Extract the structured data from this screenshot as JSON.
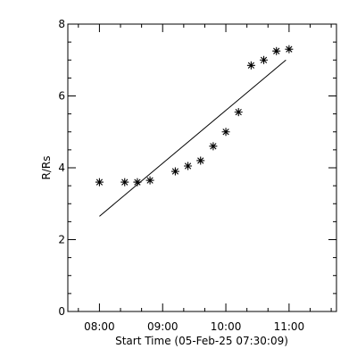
{
  "chart_data": {
    "type": "scatter",
    "xlabel": "Start Time (05-Feb-25 07:30:09)",
    "ylabel": "R/Rs",
    "x_unit": "time of day (HH:MM)",
    "xlim": [
      "07:30",
      "11:45"
    ],
    "ylim": [
      0,
      8
    ],
    "x_ticks": [
      {
        "value": "08:00",
        "label": "08:00"
      },
      {
        "value": "09:00",
        "label": "09:00"
      },
      {
        "value": "10:00",
        "label": "10:00"
      },
      {
        "value": "11:00",
        "label": "11:00"
      }
    ],
    "y_ticks": [
      0,
      2,
      4,
      6,
      8
    ],
    "minor_x_ticks": [
      "07:40",
      "08:20",
      "08:40",
      "09:20",
      "09:40",
      "10:20",
      "10:40",
      "11:20",
      "11:40"
    ],
    "minor_y_ticks": [
      0.5,
      1,
      1.5,
      2.5,
      3,
      3.5,
      4.5,
      5,
      5.5,
      6.5,
      7,
      7.5
    ],
    "grid": false,
    "legend": "none",
    "marker": "asterisk",
    "series": [
      {
        "points": [
          {
            "x": "08:00",
            "y": 3.6
          },
          {
            "x": "08:24",
            "y": 3.6
          },
          {
            "x": "08:36",
            "y": 3.6
          },
          {
            "x": "08:48",
            "y": 3.65
          },
          {
            "x": "09:12",
            "y": 3.9
          },
          {
            "x": "09:24",
            "y": 4.05
          },
          {
            "x": "09:36",
            "y": 4.2
          },
          {
            "x": "09:48",
            "y": 4.6
          },
          {
            "x": "10:00",
            "y": 5.0
          },
          {
            "x": "10:12",
            "y": 5.55
          },
          {
            "x": "10:24",
            "y": 6.85
          },
          {
            "x": "10:36",
            "y": 7.0
          },
          {
            "x": "10:48",
            "y": 7.25
          },
          {
            "x": "11:00",
            "y": 7.3
          }
        ]
      }
    ],
    "fit_line": {
      "start": {
        "x": "08:00",
        "y": 2.65
      },
      "end": {
        "x": "10:57",
        "y": 7.0
      }
    }
  }
}
